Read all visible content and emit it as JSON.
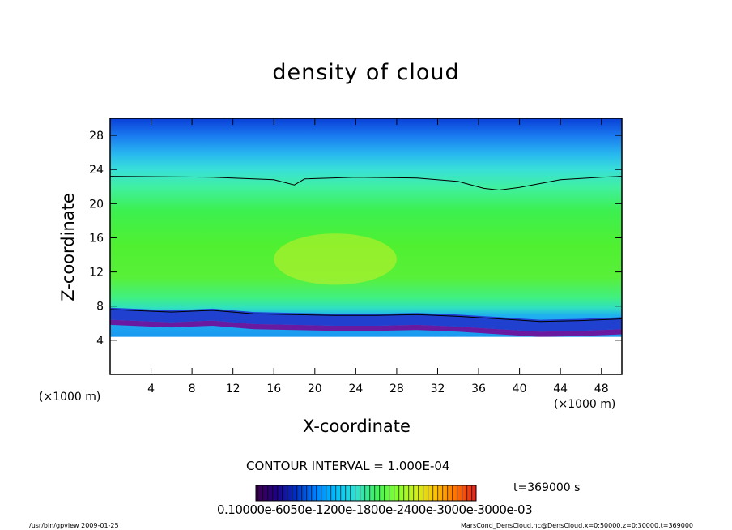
{
  "chart_data": {
    "type": "heatmap",
    "title": "density of cloud",
    "xlabel": "X-coordinate",
    "ylabel": "Z-coordinate",
    "x_unit": "(×1000 m)",
    "y_unit": "(×1000 m)",
    "xlim": [
      0,
      50
    ],
    "ylim": [
      0,
      30
    ],
    "x_ticks": [
      4,
      8,
      12,
      16,
      20,
      24,
      28,
      32,
      36,
      40,
      44,
      48
    ],
    "y_ticks": [
      4,
      8,
      12,
      16,
      20,
      24,
      28
    ],
    "contour_interval_label": "CONTOUR INTERVAL = 1.000E-04",
    "time_label": "t=369000 s",
    "colorbar_tick_label": "0.10000e-6050e-1200e-1800e-2400e-3000e-3000e-03",
    "colorbar_colors": [
      "#400050",
      "#200080",
      "#0030c0",
      "#0080ff",
      "#00c0ff",
      "#30e0d0",
      "#40f060",
      "#80ff30",
      "#d0f020",
      "#ffc000",
      "#ff7000",
      "#e02020"
    ],
    "contour_top_boundary": [
      [
        0,
        23.2
      ],
      [
        10,
        23.1
      ],
      [
        16,
        22.8
      ],
      [
        18,
        22.2
      ],
      [
        19,
        22.9
      ],
      [
        24,
        23.1
      ],
      [
        30,
        23.0
      ],
      [
        34,
        22.6
      ],
      [
        36.5,
        21.8
      ],
      [
        38,
        21.6
      ],
      [
        40,
        21.9
      ],
      [
        44,
        22.8
      ],
      [
        48,
        23.1
      ],
      [
        50,
        23.2
      ]
    ],
    "cloud_base_profile": [
      [
        0,
        6.6
      ],
      [
        6,
        6.3
      ],
      [
        10,
        6.5
      ],
      [
        14,
        6.1
      ],
      [
        18,
        6.0
      ],
      [
        22,
        5.9
      ],
      [
        26,
        5.9
      ],
      [
        30,
        6.0
      ],
      [
        34,
        5.8
      ],
      [
        38,
        5.5
      ],
      [
        42,
        5.2
      ],
      [
        46,
        5.3
      ],
      [
        50,
        5.5
      ]
    ]
  },
  "footer": {
    "left": "/usr/bin/gpview  2009-01-25",
    "right": "MarsCond_DensCloud.nc@DensCloud,x=0:50000,z=0:30000,t=369000"
  }
}
